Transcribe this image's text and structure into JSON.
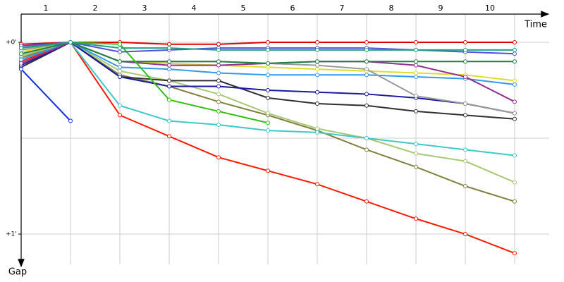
{
  "chart_data": {
    "type": "line",
    "x_label": "Time",
    "y_label": "Gap",
    "x": [
      0,
      1,
      2,
      3,
      4,
      5,
      6,
      7,
      8,
      9,
      10
    ],
    "xlim": [
      0,
      10.7
    ],
    "xticks": [
      {
        "value": 0.5,
        "label": "1"
      },
      {
        "value": 1.5,
        "label": "2"
      },
      {
        "value": 2.5,
        "label": "3"
      },
      {
        "value": 3.5,
        "label": "4"
      },
      {
        "value": 4.5,
        "label": "5"
      },
      {
        "value": 5.5,
        "label": "6"
      },
      {
        "value": 6.5,
        "label": "7"
      },
      {
        "value": 7.5,
        "label": "8"
      },
      {
        "value": 8.5,
        "label": "9"
      },
      {
        "value": 9.5,
        "label": "10"
      }
    ],
    "ylim": [
      -0.147,
      1.158
    ],
    "yticks": [
      {
        "value": 0,
        "label": "+0'"
      },
      {
        "value": 1,
        "label": "+1'"
      }
    ],
    "y_grid": [
      0,
      0.5,
      1
    ],
    "series": [
      {
        "color": "#e00000",
        "values": [
          0.01,
          0,
          0,
          0.01,
          0.01,
          0.0,
          0.0,
          0.0,
          0.0,
          0.0,
          0.0
        ]
      },
      {
        "color": "#ff1a00",
        "values": [
          0.1,
          0,
          0.38,
          0.49,
          0.6,
          0.67,
          0.74,
          0.83,
          0.92,
          1.0,
          1.1
        ]
      },
      {
        "color": "#808040",
        "values": [
          0.08,
          0,
          0.17,
          0.23,
          0.31,
          0.38,
          0.46,
          0.56,
          0.65,
          0.75,
          0.83
        ]
      },
      {
        "color": "#a8c878",
        "values": [
          0.07,
          0,
          0.15,
          0.2,
          0.27,
          0.37,
          0.45,
          0.5,
          0.58,
          0.62,
          0.73
        ]
      },
      {
        "color": "#40c8c8",
        "values": [
          0.06,
          0,
          0.33,
          0.41,
          0.43,
          0.46,
          0.47,
          0.5,
          0.53,
          0.56,
          0.59
        ]
      },
      {
        "color": "#303030",
        "values": [
          0.13,
          0,
          0.18,
          0.2,
          0.2,
          0.29,
          0.32,
          0.33,
          0.36,
          0.38,
          0.4
        ]
      },
      {
        "color": "#1a1aa0",
        "values": [
          0.12,
          0,
          0.18,
          0.23,
          0.23,
          0.25,
          0.26,
          0.27,
          0.29,
          0.32,
          0.37
        ]
      },
      {
        "color": "#3399ee",
        "values": [
          0.09,
          0,
          0.13,
          0.14,
          0.16,
          0.17,
          0.17,
          0.17,
          0.18,
          0.19,
          0.22
        ]
      },
      {
        "color": "#dddd30",
        "values": [
          0.05,
          0,
          0.1,
          0.11,
          0.12,
          0.13,
          0.14,
          0.15,
          0.16,
          0.17,
          0.2
        ]
      },
      {
        "color": "#903090",
        "values": [
          0.11,
          0,
          0.1,
          0.12,
          0.12,
          0.11,
          0.1,
          0.1,
          0.12,
          0.18,
          0.31
        ]
      },
      {
        "color": "#999999",
        "values": [
          0.04,
          0,
          0.1,
          0.1,
          0.1,
          0.11,
          0.12,
          0.14,
          0.28,
          0.32,
          0.37
        ]
      },
      {
        "color": "#208040",
        "values": [
          0.06,
          0,
          0.1,
          0.1,
          0.1,
          0.11,
          0.1,
          0.1,
          0.1,
          0.1,
          0.1
        ]
      },
      {
        "color": "#30c010",
        "values": [
          0.03,
          0,
          0.01,
          0.3,
          0.36,
          0.42,
          null,
          null,
          null,
          null,
          null
        ]
      },
      {
        "color": "#5050e0",
        "values": [
          0.02,
          0,
          0.05,
          0.04,
          0.03,
          0.03,
          0.03,
          0.03,
          0.04,
          0.05,
          0.06
        ]
      },
      {
        "color": "#20a080",
        "values": [
          0.03,
          0,
          0.03,
          0.03,
          0.04,
          0.04,
          0.04,
          0.04,
          0.04,
          0.04,
          0.04
        ]
      },
      {
        "color": "#1030e0",
        "values": [
          0.14,
          0.41,
          null,
          null,
          null,
          null,
          null,
          null,
          null,
          null,
          null
        ]
      }
    ]
  }
}
